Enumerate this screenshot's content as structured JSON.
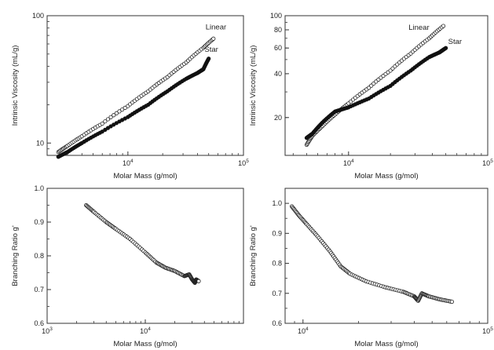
{
  "chart_data": [
    {
      "type": "scatter",
      "xscale": "log",
      "yscale": "log",
      "xlim": [
        2000,
        100000
      ],
      "ylim": [
        8,
        100
      ],
      "xlabel": "Molar Mass (g/mol)",
      "ylabel": "Intrinsic Viscosity (mL/g)",
      "x_ticks": [
        {
          "value": 10000,
          "base": "10",
          "exp": "4"
        },
        {
          "value": 100000,
          "base": "10",
          "exp": "5"
        }
      ],
      "y_ticks": [
        {
          "value": 10,
          "label": "10"
        },
        {
          "value": 100,
          "label": "100"
        }
      ],
      "grid": false,
      "series": [
        {
          "name": "Linear",
          "marker": "open",
          "label_x": 47000,
          "label_y": 78,
          "x": [
            2500,
            3000,
            4000,
            6000,
            10000,
            15000,
            22000,
            32000,
            45000,
            55000
          ],
          "y": [
            8.5,
            9.5,
            11.3,
            14.2,
            19.5,
            25.5,
            33,
            43,
            56,
            66
          ]
        },
        {
          "name": "Star",
          "marker": "filled",
          "label_x": 46000,
          "label_y": 52,
          "x": [
            2500,
            3000,
            4000,
            6000,
            10000,
            15000,
            22000,
            32000,
            40000,
            45000,
            50000
          ],
          "y": [
            7.8,
            8.5,
            10,
            12.3,
            16,
            20,
            25.5,
            32,
            35.5,
            38,
            46
          ]
        }
      ]
    },
    {
      "type": "scatter",
      "xscale": "log",
      "yscale": "log",
      "xlim": [
        3500,
        100000
      ],
      "ylim": [
        11,
        100
      ],
      "xlabel": "Molar Mass (g/mol)",
      "ylabel": "Intrinsic Viscosity (mL/g)",
      "x_ticks": [
        {
          "value": 10000,
          "base": "10",
          "exp": "4"
        },
        {
          "value": 100000,
          "base": "10",
          "exp": "5"
        }
      ],
      "y_ticks": [
        {
          "value": 20,
          "label": "20"
        },
        {
          "value": 40,
          "label": "40"
        },
        {
          "value": 60,
          "label": "60"
        },
        {
          "value": 80,
          "label": "80"
        },
        {
          "value": 100,
          "label": "100"
        }
      ],
      "grid": false,
      "series": [
        {
          "name": "Linear",
          "marker": "open",
          "label_x": 27000,
          "label_y": 80,
          "x": [
            5000,
            5500,
            6500,
            8000,
            10000,
            14000,
            20000,
            28000,
            38000,
            48000
          ],
          "y": [
            13,
            15,
            17.5,
            21,
            25,
            32,
            42,
            55,
            70,
            85
          ]
        },
        {
          "name": "Star",
          "marker": "filled",
          "label_x": 52000,
          "label_y": 64,
          "x": [
            5000,
            5500,
            6500,
            8000,
            10000,
            14000,
            20000,
            28000,
            38000,
            45000,
            50000
          ],
          "y": [
            14.5,
            15.5,
            18.5,
            22,
            23.5,
            27,
            33,
            42,
            52,
            56,
            60
          ]
        }
      ]
    },
    {
      "type": "scatter",
      "xscale": "log",
      "yscale": "linear",
      "xlim": [
        1000,
        100000
      ],
      "ylim": [
        0.6,
        1.0
      ],
      "xlabel": "Molar Mass (g/mol)",
      "ylabel": "Branching Ratio g'",
      "x_ticks": [
        {
          "value": 1000,
          "base": "10",
          "exp": "3"
        },
        {
          "value": 10000,
          "base": "10",
          "exp": "4"
        }
      ],
      "y_ticks": [
        {
          "value": 0.6,
          "label": "0.6"
        },
        {
          "value": 0.7,
          "label": "0.7"
        },
        {
          "value": 0.8,
          "label": "0.8"
        },
        {
          "value": 0.9,
          "label": "0.9"
        },
        {
          "value": 1.0,
          "label": "1.0"
        }
      ],
      "grid": false,
      "series": [
        {
          "name": "",
          "marker": "open",
          "x": [
            2500,
            3000,
            4000,
            5000,
            7000,
            10000,
            13000,
            16000,
            20000,
            25000,
            28000,
            30000,
            32000,
            33000,
            35000
          ],
          "y": [
            0.95,
            0.93,
            0.9,
            0.88,
            0.85,
            0.81,
            0.78,
            0.765,
            0.755,
            0.74,
            0.745,
            0.73,
            0.72,
            0.73,
            0.725
          ]
        }
      ]
    },
    {
      "type": "scatter",
      "xscale": "log",
      "yscale": "linear",
      "xlim": [
        8000,
        100000
      ],
      "ylim": [
        0.6,
        1.05
      ],
      "xlabel": "Molar Mass (g/mol)",
      "ylabel": "Branching Ratio g'",
      "x_ticks": [
        {
          "value": 10000,
          "base": "10",
          "exp": "4"
        },
        {
          "value": 100000,
          "base": "10",
          "exp": "5"
        }
      ],
      "y_ticks": [
        {
          "value": 0.6,
          "label": "0.6"
        },
        {
          "value": 0.7,
          "label": "0.7"
        },
        {
          "value": 0.8,
          "label": "0.8"
        },
        {
          "value": 0.9,
          "label": "0.9"
        },
        {
          "value": 1.0,
          "label": "1.0"
        }
      ],
      "grid": false,
      "series": [
        {
          "name": "",
          "marker": "open",
          "x": [
            8700,
            9500,
            10500,
            12000,
            14000,
            16000,
            18000,
            22000,
            28000,
            35000,
            40000,
            42000,
            44000,
            48000,
            55000,
            64000
          ],
          "y": [
            0.99,
            0.96,
            0.93,
            0.89,
            0.84,
            0.79,
            0.765,
            0.74,
            0.72,
            0.705,
            0.69,
            0.675,
            0.7,
            0.69,
            0.68,
            0.672
          ]
        }
      ]
    }
  ]
}
